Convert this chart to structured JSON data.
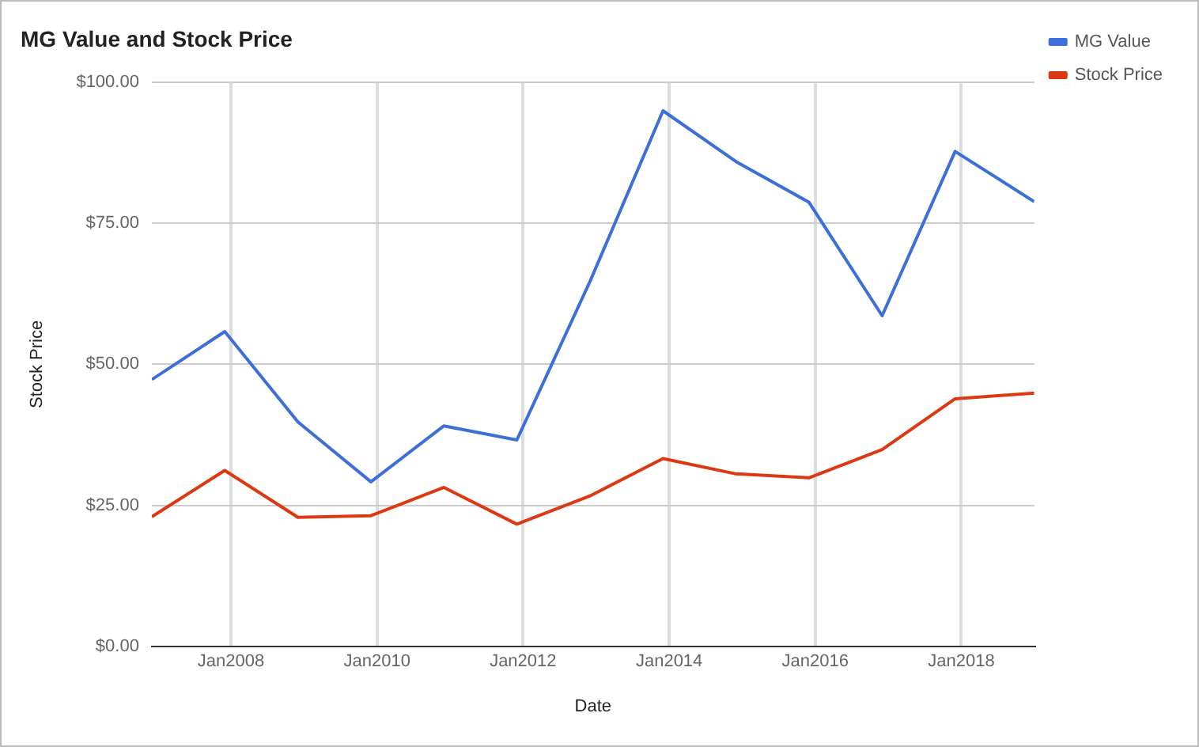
{
  "chart_data": {
    "type": "line",
    "title": "MG Value and Stock Price",
    "xlabel": "Date",
    "ylabel": "Stock Price",
    "x": [
      "2006-12",
      "2007-12",
      "2008-12",
      "2009-12",
      "2010-12",
      "2011-12",
      "2012-12",
      "2013-12",
      "2014-12",
      "2015-12",
      "2016-12",
      "2017-12",
      "2019-01"
    ],
    "series": [
      {
        "name": "MG Value",
        "color": "#3c6fd8",
        "values": [
          47.3,
          55.8,
          39.8,
          29.2,
          39.1,
          36.6,
          64.7,
          94.9,
          85.9,
          78.7,
          58.6,
          87.7,
          78.8
        ]
      },
      {
        "name": "Stock Price",
        "color": "#dc3912",
        "values": [
          23.0,
          31.2,
          22.9,
          23.2,
          28.2,
          21.7,
          26.7,
          33.3,
          30.6,
          29.9,
          34.9,
          43.9,
          44.9
        ]
      }
    ],
    "xlim": [
      "2006-12",
      "2019-01"
    ],
    "xticks": [
      {
        "value": "2008-01",
        "label": "Jan2008"
      },
      {
        "value": "2010-01",
        "label": "Jan2010"
      },
      {
        "value": "2012-01",
        "label": "Jan2012"
      },
      {
        "value": "2014-01",
        "label": "Jan2014"
      },
      {
        "value": "2016-01",
        "label": "Jan2016"
      },
      {
        "value": "2018-01",
        "label": "Jan2018"
      }
    ],
    "ylim": [
      0,
      100
    ],
    "yticks": [
      {
        "value": 0,
        "label": "$0.00"
      },
      {
        "value": 25,
        "label": "$25.00"
      },
      {
        "value": 50,
        "label": "$50.00"
      },
      {
        "value": 75,
        "label": "$75.00"
      },
      {
        "value": 100,
        "label": "$100.00"
      }
    ],
    "grid": true,
    "legend": "top right",
    "marker": "none",
    "line_style": "solid"
  }
}
